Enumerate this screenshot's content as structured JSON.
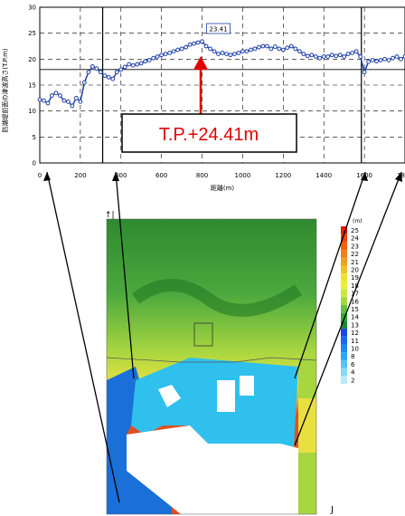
{
  "chart_data": {
    "type": "line",
    "ylabel": "防潮堤前面の津波高さ(T.P.m)",
    "xlabel": "距離(m)",
    "xlim": [
      0,
      1800
    ],
    "ylim": [
      0,
      30
    ],
    "x_ticks": [
      "0",
      "200",
      "400",
      "600",
      "800",
      "1000",
      "1200",
      "1400",
      "1600",
      "18"
    ],
    "y_ticks": [
      "0",
      "5",
      "10",
      "15",
      "20",
      "25",
      "30"
    ],
    "reference_line": 18,
    "vertical_markers": [
      310,
      1585
    ],
    "peak": {
      "x": 800,
      "y": 23.41,
      "label": "23.41"
    },
    "callout": "T.P.+24.41m",
    "series": [
      {
        "color": "#1f3fa8",
        "x": [
          0,
          20,
          40,
          60,
          80,
          100,
          120,
          140,
          160,
          180,
          200,
          220,
          240,
          260,
          280,
          300,
          320,
          340,
          360,
          380,
          400,
          420,
          440,
          460,
          480,
          500,
          520,
          540,
          560,
          580,
          600,
          620,
          640,
          660,
          680,
          700,
          720,
          740,
          760,
          780,
          800,
          820,
          840,
          860,
          880,
          900,
          920,
          940,
          960,
          980,
          1000,
          1020,
          1040,
          1060,
          1080,
          1100,
          1120,
          1140,
          1160,
          1180,
          1200,
          1220,
          1240,
          1260,
          1280,
          1300,
          1320,
          1340,
          1360,
          1380,
          1400,
          1420,
          1440,
          1460,
          1480,
          1500,
          1520,
          1540,
          1560,
          1580,
          1600,
          1620,
          1640,
          1660,
          1680,
          1700,
          1720,
          1740,
          1760,
          1780,
          1800
        ],
        "y": [
          12.2,
          12.0,
          11.5,
          13.0,
          13.5,
          13.0,
          12.0,
          11.8,
          11.0,
          12.5,
          11.8,
          15.5,
          17.5,
          18.6,
          18.2,
          17.5,
          16.8,
          16.5,
          16.2,
          17.5,
          18.0,
          18.5,
          19.0,
          18.8,
          19.0,
          19.2,
          19.6,
          19.8,
          20.2,
          20.5,
          20.8,
          21.0,
          21.2,
          21.5,
          21.8,
          22.0,
          22.3,
          22.8,
          23.0,
          23.2,
          23.41,
          22.5,
          22.0,
          21.5,
          21.0,
          21.2,
          21.0,
          20.8,
          21.0,
          21.2,
          21.5,
          21.5,
          21.8,
          22.0,
          22.3,
          22.5,
          22.5,
          22.0,
          22.4,
          22.0,
          21.8,
          22.2,
          22.5,
          22.0,
          21.5,
          21.0,
          20.6,
          20.8,
          20.5,
          20.2,
          20.5,
          20.5,
          20.8,
          20.6,
          20.8,
          20.5,
          21.0,
          21.2,
          21.5,
          20.5,
          17.5,
          19.5,
          19.8,
          19.6,
          19.8,
          20.0,
          19.8,
          20.2,
          20.5,
          20.0,
          20.5
        ]
      }
    ]
  },
  "map": {
    "legend_unit": "(m)",
    "legend_levels": [
      "25",
      "24",
      "23",
      "22",
      "21",
      "20",
      "19",
      "18",
      "17",
      "16",
      "15",
      "14",
      "13",
      "12",
      "11",
      "10",
      "8",
      "6",
      "4",
      "2"
    ],
    "corner_top": "↑|",
    "corner_bottom": "J"
  }
}
